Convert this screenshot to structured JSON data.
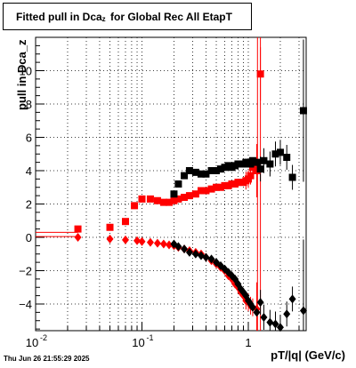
{
  "title": {
    "main": "Fitted pull in Dca",
    "sub": "z",
    "rest": "for Global Rec All EtapT"
  },
  "ylabel": "pull in Dca_z",
  "xlabel": "pT/|q| (GeV/c)",
  "timestamp": "Thu Jun 26 21:55:29 2025",
  "colors": {
    "red": "#ff0000",
    "black": "#000000",
    "grid": "#000000"
  },
  "chart_data": {
    "type": "scatter",
    "x_scale": "log",
    "xlim": [
      0.01,
      3.5
    ],
    "ylim": [
      -5.6,
      12
    ],
    "grid": true,
    "x_tick_labels": [
      "10^-2",
      "10^-1",
      "1"
    ],
    "y_tick_labels": [
      "-4",
      "-2",
      "0",
      "2",
      "4",
      "6",
      "8",
      "10"
    ],
    "series": [
      {
        "color": "red",
        "marker": "square",
        "x": [
          0.025,
          0.05,
          0.07,
          0.085,
          0.1,
          0.12,
          0.14,
          0.16,
          0.18,
          0.2,
          0.22,
          0.25,
          0.28,
          0.32,
          0.36,
          0.4,
          0.45,
          0.5,
          0.55,
          0.6,
          0.65,
          0.7,
          0.75,
          0.8,
          0.85,
          0.9,
          0.95,
          1.0,
          1.05,
          1.1,
          1.2,
          1.3
        ],
        "y": [
          0.5,
          0.6,
          0.95,
          1.9,
          2.3,
          2.3,
          2.2,
          2.1,
          2.1,
          2.2,
          2.3,
          2.4,
          2.5,
          2.6,
          2.8,
          2.8,
          2.9,
          3.0,
          3.0,
          3.1,
          3.1,
          3.2,
          3.2,
          3.3,
          3.3,
          3.3,
          3.4,
          3.5,
          3.7,
          4.2,
          4.0,
          9.8
        ]
      },
      {
        "color": "black",
        "marker": "square",
        "x": [
          0.2,
          0.22,
          0.25,
          0.28,
          0.32,
          0.36,
          0.4,
          0.45,
          0.5,
          0.55,
          0.6,
          0.65,
          0.7,
          0.75,
          0.8,
          0.85,
          0.9,
          0.95,
          1.0,
          1.05,
          1.1,
          1.2,
          1.3,
          1.4,
          1.6,
          1.8,
          2.0,
          2.3,
          2.6,
          3.3
        ],
        "y": [
          2.6,
          3.2,
          3.7,
          4.0,
          3.9,
          3.8,
          3.8,
          4.0,
          4.0,
          4.1,
          4.2,
          4.3,
          4.2,
          4.3,
          4.4,
          4.4,
          4.4,
          4.5,
          4.5,
          4.4,
          4.6,
          4.5,
          4.1,
          4.6,
          4.4,
          5.0,
          5.1,
          4.8,
          3.6,
          7.6
        ]
      },
      {
        "color": "red",
        "marker": "diamond",
        "x": [
          0.025,
          0.05,
          0.07,
          0.09,
          0.1,
          0.12,
          0.14,
          0.16,
          0.18,
          0.2,
          0.22,
          0.25,
          0.28,
          0.32,
          0.36,
          0.4,
          0.45,
          0.5,
          0.55,
          0.6,
          0.65,
          0.7,
          0.75,
          0.8,
          0.85,
          0.9,
          0.95,
          1.0,
          1.05,
          1.1,
          1.2
        ],
        "y": [
          0.0,
          -0.1,
          -0.15,
          -0.2,
          -0.25,
          -0.3,
          -0.35,
          -0.4,
          -0.45,
          -0.5,
          -0.6,
          -0.7,
          -0.8,
          -0.9,
          -1.0,
          -1.2,
          -1.4,
          -1.6,
          -1.8,
          -2.0,
          -2.3,
          -2.5,
          -2.8,
          -3.0,
          -3.3,
          -3.5,
          -3.8,
          -3.9,
          -4.1,
          -4.2,
          -4.3
        ]
      },
      {
        "color": "black",
        "marker": "diamond",
        "x": [
          0.2,
          0.22,
          0.25,
          0.28,
          0.32,
          0.36,
          0.4,
          0.45,
          0.5,
          0.55,
          0.6,
          0.65,
          0.7,
          0.75,
          0.8,
          0.85,
          0.9,
          0.95,
          1.0,
          1.05,
          1.1,
          1.2,
          1.3,
          1.4,
          1.6,
          1.8,
          2.0,
          2.3,
          2.6,
          3.3
        ],
        "y": [
          -0.4,
          -0.55,
          -0.7,
          -0.9,
          -1.0,
          -1.1,
          -1.2,
          -1.3,
          -1.5,
          -1.7,
          -1.9,
          -2.1,
          -2.3,
          -2.5,
          -2.8,
          -3.1,
          -3.3,
          -3.5,
          -3.8,
          -4.0,
          -4.2,
          -4.5,
          -3.9,
          -4.8,
          -5.1,
          -5.2,
          -5.4,
          -4.6,
          -3.7,
          -4.4
        ]
      }
    ]
  }
}
